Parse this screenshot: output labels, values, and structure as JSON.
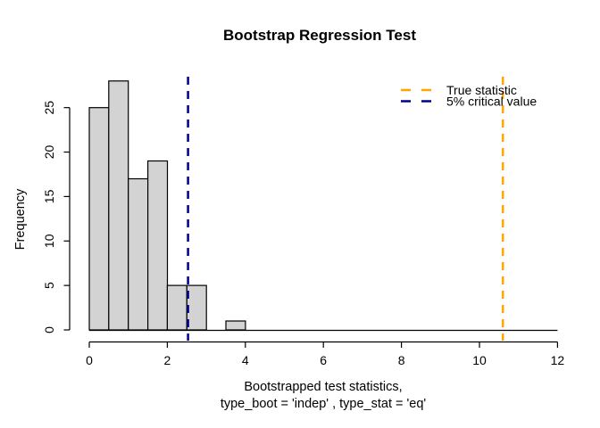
{
  "chart_data": {
    "type": "bar",
    "subtype": "histogram",
    "title": "Bootstrap Regression Test",
    "xlabel_line1": "Bootstrapped test statistics,",
    "xlabel_line2": "type_boot = 'indep' , type_stat = 'eq'",
    "ylabel": "Frequency",
    "bin_start": 0,
    "bin_width": 0.5,
    "counts": [
      25,
      28,
      17,
      19,
      5,
      5,
      0,
      1
    ],
    "total_samples": 100,
    "bar_fill": "#d3d3d3",
    "bar_stroke": "#000000",
    "xlim": [
      0,
      12
    ],
    "ylim": [
      0,
      25
    ],
    "xticks": [
      0,
      2,
      4,
      6,
      8,
      10,
      12
    ],
    "yticks": [
      0,
      5,
      10,
      15,
      20,
      25
    ],
    "baseline_extent": [
      0,
      12
    ],
    "grid": false,
    "vlines": [
      {
        "x": 10.6,
        "color": "#ffa500",
        "style": "dashed",
        "label": "True statistic"
      },
      {
        "x": 2.53,
        "color": "#00008b",
        "style": "dashed",
        "label": "5% critical value"
      }
    ],
    "legend": {
      "position": "top-right",
      "items": [
        {
          "label": "True statistic",
          "color": "#ffa500",
          "style": "dashed"
        },
        {
          "label": "5% critical value",
          "color": "#00008b",
          "style": "dashed"
        }
      ]
    }
  }
}
